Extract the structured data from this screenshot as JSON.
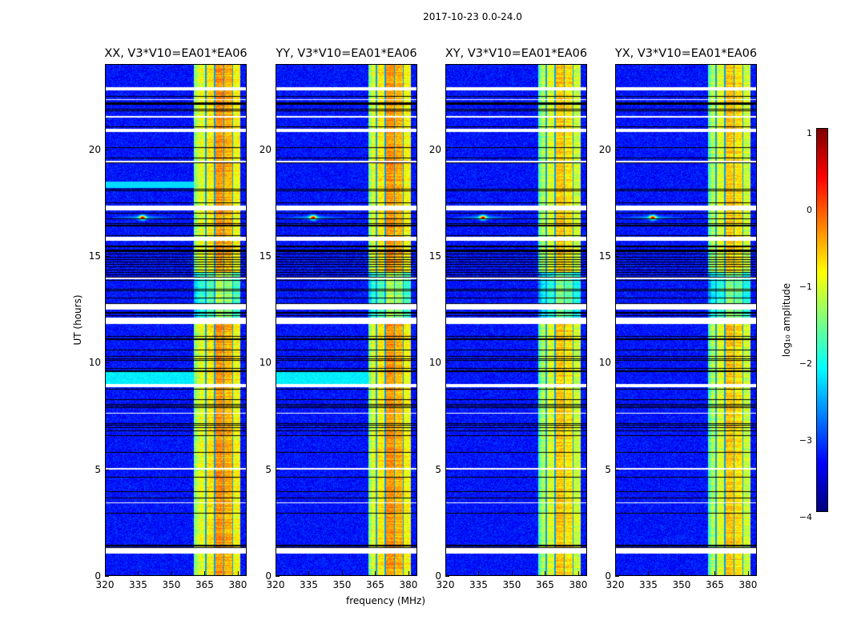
{
  "chart_data": {
    "type": "heatmap",
    "title": "2017-10-23 0.0-24.0",
    "xlabel": "frequency (MHz)",
    "ylabel": "UT (hours)",
    "xlim": [
      320,
      384
    ],
    "ylim": [
      0,
      24
    ],
    "xticks": [
      "320",
      "335",
      "350",
      "365",
      "380"
    ],
    "yticks": [
      "0",
      "5",
      "10",
      "15",
      "20"
    ],
    "panels": [
      {
        "title": "XX, V3*V10=EA01*EA06",
        "band_start": 360
      },
      {
        "title": "YY, V3*V10=EA01*EA06",
        "band_start": 362
      },
      {
        "title": "XY, V3*V10=EA01*EA06",
        "band_start": 362
      },
      {
        "title": "YX, V3*V10=EA01*EA06",
        "band_start": 362
      }
    ],
    "rfi_band_mhz": [
      362,
      381
    ],
    "rfi_spike": {
      "freq_mhz": 337,
      "ut_hours": 16.8
    },
    "flagged_hours": [
      [
        22.75,
        22.9
      ],
      [
        22.3,
        22.35
      ],
      [
        21.5,
        21.55
      ],
      [
        20.8,
        20.95
      ],
      [
        19.4,
        19.45
      ],
      [
        17.15,
        17.35
      ],
      [
        15.7,
        15.9
      ],
      [
        13.9,
        14.0
      ],
      [
        12.5,
        12.75
      ],
      [
        11.8,
        12.1
      ],
      [
        8.85,
        9.0
      ],
      [
        7.6,
        7.65
      ],
      [
        5.0,
        5.05
      ],
      [
        3.4,
        3.45
      ],
      [
        1.05,
        1.3
      ]
    ],
    "colorbar": {
      "label": "log₁₀ amplitude",
      "range": [
        -4,
        1
      ],
      "ticks": [
        "1",
        "0",
        "−1",
        "−2",
        "−3",
        "−4"
      ],
      "colormap": "jet"
    }
  }
}
